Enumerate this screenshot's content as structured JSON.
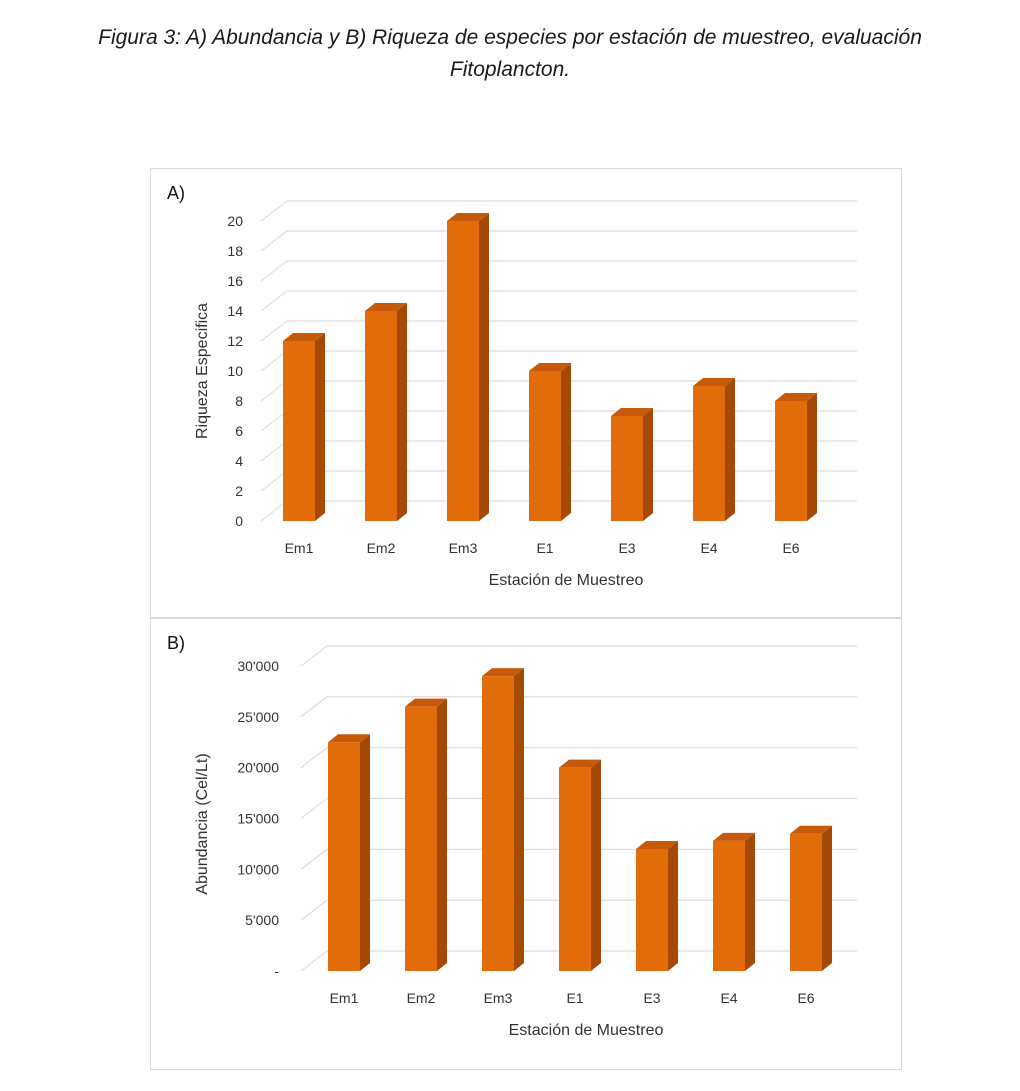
{
  "caption": {
    "line1": "Figura 3: A) Abundancia y B) Riqueza de especies por estación de muestreo, evaluación",
    "line2": "Fitoplancton."
  },
  "colors": {
    "front": "#E36C0A",
    "side": "#A54A06",
    "top": "#C65A08",
    "grid": "#D9D9D9"
  },
  "chart_data": [
    {
      "type": "bar",
      "panel_label": "A)",
      "title": "",
      "categories": [
        "Em1",
        "Em2",
        "Em3",
        "E1",
        "E3",
        "E4",
        "E6"
      ],
      "values": [
        12,
        14,
        20,
        10,
        7,
        9,
        8
      ],
      "xlabel": "Estación de Muestreo",
      "ylabel": "Riqueza  Especifica",
      "ylim": [
        0,
        20
      ],
      "yticks": [
        0,
        2,
        4,
        6,
        8,
        10,
        12,
        14,
        16,
        18,
        20
      ],
      "ytick_labels": [
        "0",
        "2",
        "4",
        "6",
        "8",
        "10",
        "12",
        "14",
        "16",
        "18",
        "20"
      ],
      "grid": true
    },
    {
      "type": "bar",
      "panel_label": "B)",
      "title": "",
      "categories": [
        "Em1",
        "Em2",
        "Em3",
        "E1",
        "E3",
        "E4",
        "E6"
      ],
      "values": [
        22500,
        26000,
        29000,
        20000,
        12000,
        12800,
        13500
      ],
      "xlabel": "Estación de Muestreo",
      "ylabel": "Abundancia (Cel/Lt)",
      "ylim": [
        0,
        30000
      ],
      "yticks": [
        0,
        5000,
        10000,
        15000,
        20000,
        25000,
        30000
      ],
      "ytick_labels": [
        "-",
        "5'000",
        "10'000",
        "15'000",
        "20'000",
        "25'000",
        "30'000"
      ],
      "grid": true
    }
  ]
}
